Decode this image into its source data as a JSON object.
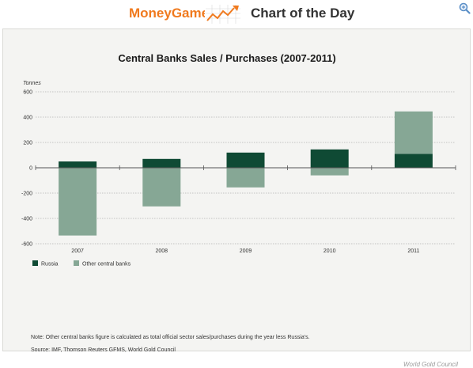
{
  "header": {
    "brand": "MoneyGame",
    "title": "Chart of the Day",
    "icons": [
      "trend-chart-icon",
      "zoom-icon"
    ]
  },
  "colors": {
    "brand": "#f07a1e",
    "russia": "#0f4a34",
    "other": "#86a795",
    "panel": "#f4f4f2"
  },
  "chart_data": {
    "type": "bar",
    "stacked": true,
    "title": "Central Banks Sales / Purchases (2007-2011)",
    "ylabel": "Tonnes",
    "ylim": [
      -600,
      600
    ],
    "yticks": [
      600,
      400,
      200,
      0,
      -200,
      -400,
      -600
    ],
    "grid": true,
    "legend_position": "bottom-left",
    "categories": [
      "2007",
      "2008",
      "2009",
      "2010",
      "2011"
    ],
    "series": [
      {
        "name": "Russia",
        "color": "#0f4a34",
        "values": [
          50,
          70,
          120,
          145,
          110
        ]
      },
      {
        "name": "Other central banks",
        "color": "#86a795",
        "values": [
          -535,
          -305,
          -155,
          -60,
          335
        ]
      }
    ]
  },
  "footer": {
    "note": "Note: Other central banks figure is calculated as total official sector sales/purchases during the year less Russia's.",
    "source": "Source: IMF, Thomson Reuters GFMS, World Gold Council",
    "credit": "World Gold Council"
  }
}
